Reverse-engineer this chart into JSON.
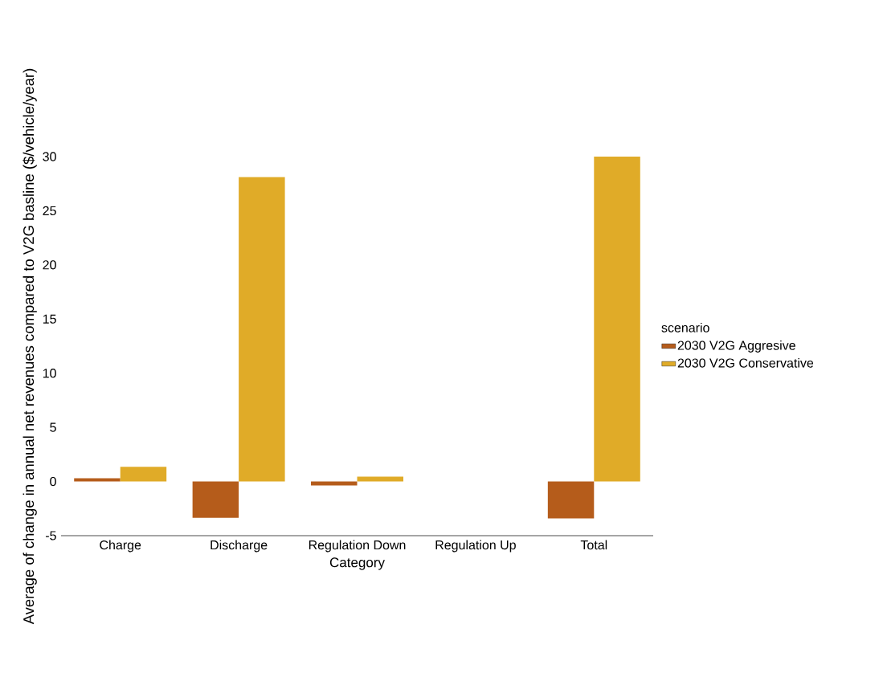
{
  "chart_data": {
    "type": "bar",
    "xlabel": "Category",
    "ylabel": "Average of change in annual net revenues compared to V2G basline ($/vehicle/year)",
    "legend_title": "scenario",
    "categories": [
      "Charge",
      "Discharge",
      "Regulation Down",
      "Regulation Up",
      "Total"
    ],
    "series": [
      {
        "name": "2030 V2G Aggresive",
        "color": "#b55c1b",
        "values": [
          0.3,
          -3.35,
          -0.37,
          0,
          -3.4
        ]
      },
      {
        "name": "2030 V2G Conservative",
        "color": "#e0ab28",
        "values": [
          1.35,
          28.1,
          0.45,
          0,
          30.0
        ]
      }
    ],
    "ylim": [
      -5,
      30
    ],
    "yticks": [
      -5,
      0,
      5,
      10,
      15,
      20,
      25,
      30
    ],
    "grid": false,
    "legend": "right"
  }
}
